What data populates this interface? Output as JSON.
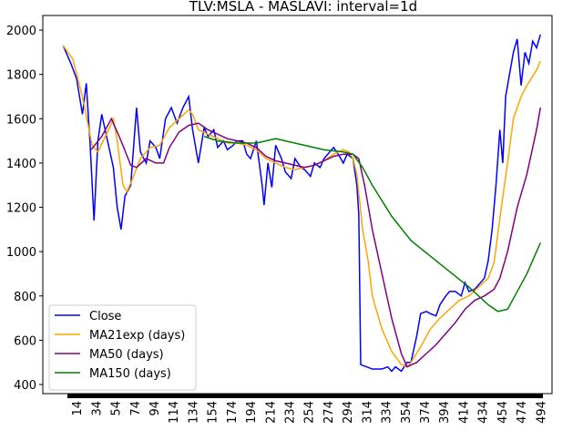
{
  "chart_data": {
    "type": "line",
    "title": "TLV:MSLA - MASLAVI: interval=1d",
    "xlim": [
      -21,
      506
    ],
    "ylim": [
      359,
      2066
    ],
    "yticks": [
      400,
      600,
      800,
      1000,
      1200,
      1400,
      1600,
      1800,
      2000
    ],
    "xticks": [
      14,
      34,
      54,
      74,
      94,
      114,
      134,
      154,
      174,
      194,
      214,
      234,
      254,
      274,
      294,
      314,
      334,
      354,
      374,
      394,
      414,
      434,
      454,
      474,
      494
    ],
    "legend": "lower left",
    "series": [
      {
        "name": "Close",
        "color": "#0000ff",
        "x": [
          0,
          8,
          14,
          20,
          24,
          28,
          32,
          36,
          40,
          44,
          48,
          52,
          56,
          60,
          64,
          70,
          76,
          80,
          86,
          90,
          96,
          100,
          106,
          112,
          118,
          124,
          130,
          134,
          140,
          146,
          150,
          156,
          160,
          166,
          170,
          176,
          180,
          186,
          190,
          194,
          200,
          206,
          208,
          212,
          216,
          220,
          226,
          230,
          236,
          240,
          246,
          250,
          256,
          260,
          266,
          270,
          276,
          280,
          286,
          290,
          294,
          300,
          304,
          306,
          308,
          314,
          320,
          330,
          336,
          340,
          344,
          350,
          356,
          360,
          366,
          370,
          376,
          380,
          386,
          390,
          396,
          400,
          406,
          412,
          416,
          420,
          426,
          430,
          436,
          440,
          444,
          448,
          452,
          455,
          458,
          462,
          466,
          470,
          474,
          478,
          482,
          486,
          490,
          494
        ],
        "values": [
          1930,
          1850,
          1780,
          1620,
          1760,
          1480,
          1140,
          1500,
          1620,
          1540,
          1460,
          1380,
          1200,
          1100,
          1250,
          1300,
          1650,
          1450,
          1400,
          1500,
          1470,
          1420,
          1600,
          1650,
          1580,
          1650,
          1700,
          1550,
          1400,
          1560,
          1520,
          1550,
          1470,
          1500,
          1460,
          1480,
          1500,
          1500,
          1440,
          1420,
          1500,
          1300,
          1210,
          1400,
          1290,
          1480,
          1420,
          1360,
          1330,
          1420,
          1380,
          1370,
          1340,
          1400,
          1380,
          1420,
          1450,
          1470,
          1430,
          1400,
          1440,
          1420,
          1300,
          1170,
          490,
          480,
          470,
          470,
          480,
          460,
          480,
          460,
          500,
          500,
          620,
          720,
          730,
          720,
          710,
          760,
          800,
          820,
          820,
          800,
          860,
          820,
          830,
          850,
          880,
          960,
          1100,
          1300,
          1550,
          1400,
          1700,
          1800,
          1900,
          1960,
          1750,
          1900,
          1850,
          1950,
          1920,
          1980
        ]
      },
      {
        "name": "MA21exp (days)",
        "color": "#ffa500",
        "x": [
          0,
          10,
          20,
          30,
          36,
          46,
          52,
          56,
          62,
          66,
          72,
          80,
          90,
          100,
          110,
          120,
          130,
          134,
          140,
          150,
          160,
          170,
          180,
          190,
          200,
          210,
          220,
          230,
          240,
          250,
          260,
          270,
          280,
          290,
          296,
          300,
          304,
          310,
          316,
          320,
          330,
          340,
          350,
          356,
          360,
          370,
          380,
          390,
          400,
          410,
          420,
          430,
          440,
          446,
          452,
          460,
          466,
          474,
          480,
          490,
          494
        ],
        "values": [
          1930,
          1870,
          1700,
          1480,
          1450,
          1540,
          1600,
          1500,
          1300,
          1270,
          1330,
          1420,
          1470,
          1480,
          1560,
          1600,
          1640,
          1620,
          1550,
          1530,
          1510,
          1490,
          1490,
          1480,
          1460,
          1420,
          1400,
          1380,
          1370,
          1380,
          1390,
          1410,
          1440,
          1460,
          1450,
          1420,
          1350,
          1100,
          950,
          800,
          650,
          550,
          490,
          480,
          500,
          570,
          650,
          700,
          740,
          780,
          800,
          840,
          880,
          950,
          1150,
          1400,
          1600,
          1700,
          1750,
          1820,
          1860
        ]
      },
      {
        "name": "MA50 (days)",
        "color": "#800080",
        "x": [
          29,
          40,
          50,
          60,
          70,
          76,
          86,
          96,
          104,
          110,
          120,
          130,
          140,
          150,
          160,
          170,
          180,
          190,
          200,
          210,
          220,
          230,
          240,
          250,
          260,
          270,
          280,
          290,
          300,
          306,
          312,
          320,
          330,
          340,
          350,
          356,
          366,
          376,
          386,
          396,
          406,
          416,
          426,
          436,
          446,
          452,
          460,
          470,
          480,
          490,
          494
        ],
        "values": [
          1460,
          1520,
          1600,
          1500,
          1390,
          1380,
          1420,
          1400,
          1400,
          1470,
          1540,
          1570,
          1580,
          1550,
          1530,
          1510,
          1500,
          1490,
          1470,
          1430,
          1410,
          1400,
          1390,
          1380,
          1390,
          1410,
          1430,
          1440,
          1440,
          1420,
          1300,
          1100,
          900,
          700,
          540,
          480,
          500,
          540,
          580,
          630,
          680,
          740,
          780,
          800,
          830,
          880,
          1000,
          1200,
          1350,
          1550,
          1650
        ]
      },
      {
        "name": "MA150 (days)",
        "color": "#008000",
        "x": [
          146,
          160,
          180,
          200,
          210,
          220,
          230,
          250,
          270,
          290,
          300,
          310,
          320,
          340,
          360,
          380,
          400,
          420,
          440,
          450,
          460,
          470,
          480,
          494
        ],
        "values": [
          1520,
          1500,
          1490,
          1490,
          1500,
          1510,
          1500,
          1480,
          1460,
          1450,
          1440,
          1380,
          1300,
          1160,
          1050,
          980,
          910,
          840,
          760,
          730,
          740,
          820,
          900,
          1040
        ]
      }
    ]
  }
}
